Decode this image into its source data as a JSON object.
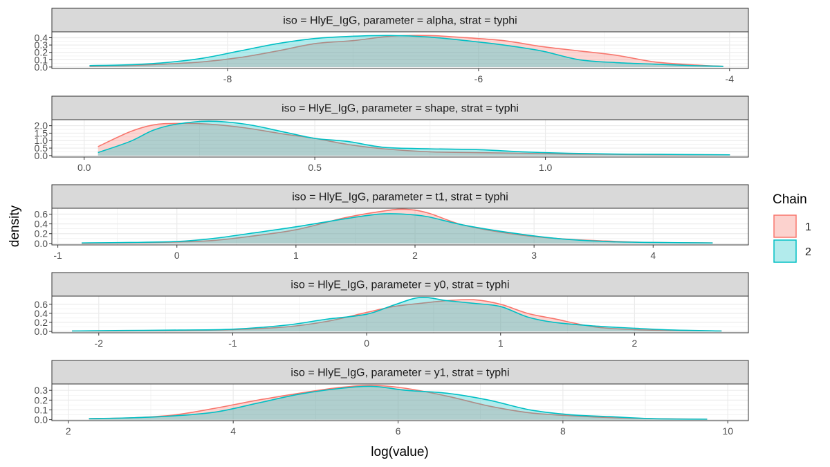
{
  "chart_data": {
    "type": "area",
    "xlabel": "log(value)",
    "ylabel": "density",
    "legend": {
      "title": "Chain",
      "position": "right",
      "entries": [
        {
          "label": "1",
          "color": "#F8766D",
          "fill": "#FCD2CE"
        },
        {
          "label": "2",
          "color": "#00BFC4",
          "fill": "#B2EBEC"
        }
      ]
    },
    "colors": {
      "chain1": "#F8766D",
      "chain2": "#00BFC4",
      "strip_bg": "#D9D9D9",
      "grid": "#EBEBEB"
    },
    "panels": [
      {
        "strip": "iso = HlyE_IgG, parameter = alpha, strat = typhi",
        "xlim": [
          -9.4,
          -3.85
        ],
        "ylim": [
          -0.02,
          0.48
        ],
        "xticks": [
          -8,
          -6,
          -4
        ],
        "xtick_labels": [
          "-8",
          "-6",
          "-4"
        ],
        "yticks": [
          0.0,
          0.1,
          0.2,
          0.3,
          0.4
        ],
        "ytick_labels": [
          "0.0",
          "0.1",
          "0.2",
          "0.3",
          "0.4"
        ],
        "series": [
          {
            "name": "1",
            "x": [
              -9.1,
              -8.8,
              -8.5,
              -8.2,
              -7.9,
              -7.6,
              -7.3,
              -7.0,
              -6.7,
              -6.4,
              -6.1,
              -5.8,
              -5.5,
              -5.2,
              -4.9,
              -4.6,
              -4.3,
              -4.05
            ],
            "y": [
              0.01,
              0.02,
              0.04,
              0.07,
              0.13,
              0.22,
              0.32,
              0.36,
              0.42,
              0.43,
              0.4,
              0.36,
              0.28,
              0.22,
              0.16,
              0.07,
              0.03,
              0.01
            ]
          },
          {
            "name": "2",
            "x": [
              -9.1,
              -8.8,
              -8.5,
              -8.2,
              -7.9,
              -7.6,
              -7.3,
              -7.0,
              -6.7,
              -6.4,
              -6.1,
              -5.8,
              -5.5,
              -5.2,
              -4.9,
              -4.6,
              -4.3,
              -4.05
            ],
            "y": [
              0.02,
              0.03,
              0.06,
              0.12,
              0.22,
              0.32,
              0.39,
              0.42,
              0.43,
              0.41,
              0.36,
              0.3,
              0.22,
              0.1,
              0.06,
              0.04,
              0.02,
              0.01
            ]
          }
        ]
      },
      {
        "strip": "iso = HlyE_IgG, parameter = shape, strat = typhi",
        "xlim": [
          -0.07,
          1.44
        ],
        "ylim": [
          -0.1,
          2.4
        ],
        "xticks": [
          0.0,
          0.5,
          1.0
        ],
        "xtick_labels": [
          "0.0",
          "0.5",
          "1.0"
        ],
        "yticks": [
          0.0,
          0.5,
          1.0,
          1.5,
          2.0
        ],
        "ytick_labels": [
          "0.0",
          "0.5",
          "1.0",
          "1.5",
          "2.0"
        ],
        "series": [
          {
            "name": "1",
            "x": [
              0.03,
              0.1,
              0.15,
              0.2,
              0.27,
              0.35,
              0.43,
              0.5,
              0.57,
              0.65,
              0.75,
              0.85,
              0.95,
              1.05,
              1.15,
              1.25,
              1.4
            ],
            "y": [
              0.6,
              1.6,
              2.05,
              2.15,
              2.1,
              1.85,
              1.45,
              1.15,
              0.75,
              0.45,
              0.25,
              0.2,
              0.15,
              0.1,
              0.08,
              0.06,
              0.05
            ]
          },
          {
            "name": "2",
            "x": [
              0.03,
              0.1,
              0.15,
              0.2,
              0.27,
              0.35,
              0.43,
              0.5,
              0.57,
              0.65,
              0.75,
              0.85,
              0.95,
              1.05,
              1.15,
              1.25,
              1.4
            ],
            "y": [
              0.2,
              0.95,
              1.7,
              2.1,
              2.3,
              2.1,
              1.6,
              1.15,
              0.95,
              0.55,
              0.45,
              0.4,
              0.25,
              0.15,
              0.1,
              0.08,
              0.05
            ]
          }
        ]
      },
      {
        "strip": "iso = HlyE_IgG, parameter = t1, strat = typhi",
        "xlim": [
          -1.05,
          4.8
        ],
        "ylim": [
          -0.03,
          0.72
        ],
        "xticks": [
          -1,
          0,
          1,
          2,
          3,
          4
        ],
        "xtick_labels": [
          "-1",
          "0",
          "1",
          "2",
          "3",
          "4"
        ],
        "yticks": [
          0.0,
          0.2,
          0.4,
          0.6
        ],
        "ytick_labels": [
          "0.0",
          "0.2",
          "0.4",
          "0.6"
        ],
        "series": [
          {
            "name": "1",
            "x": [
              -0.8,
              -0.4,
              0.0,
              0.3,
              0.6,
              1.0,
              1.4,
              1.7,
              1.9,
              2.1,
              2.4,
              2.8,
              3.2,
              3.6,
              4.0,
              4.5
            ],
            "y": [
              0.0,
              0.01,
              0.03,
              0.06,
              0.14,
              0.28,
              0.52,
              0.65,
              0.7,
              0.63,
              0.38,
              0.2,
              0.1,
              0.05,
              0.02,
              0.01
            ]
          },
          {
            "name": "2",
            "x": [
              -0.8,
              -0.4,
              0.0,
              0.3,
              0.6,
              1.0,
              1.4,
              1.7,
              1.9,
              2.1,
              2.4,
              2.8,
              3.2,
              3.6,
              4.0,
              4.5
            ],
            "y": [
              0.01,
              0.02,
              0.04,
              0.1,
              0.2,
              0.34,
              0.5,
              0.6,
              0.6,
              0.55,
              0.38,
              0.22,
              0.1,
              0.04,
              0.02,
              0.01
            ]
          }
        ]
      },
      {
        "strip": "iso = HlyE_IgG, parameter = y0, strat = typhi",
        "xlim": [
          -2.35,
          2.85
        ],
        "ylim": [
          -0.03,
          0.78
        ],
        "xticks": [
          -2,
          -1,
          0,
          1,
          2
        ],
        "xtick_labels": [
          "-2",
          "-1",
          "0",
          "1",
          "2"
        ],
        "yticks": [
          0.0,
          0.2,
          0.4,
          0.6
        ],
        "ytick_labels": [
          "0.0",
          "0.2",
          "0.4",
          "0.6"
        ],
        "series": [
          {
            "name": "1",
            "x": [
              -2.2,
              -1.8,
              -1.4,
              -1.0,
              -0.6,
              -0.3,
              0.0,
              0.2,
              0.4,
              0.6,
              0.8,
              1.0,
              1.2,
              1.4,
              1.7,
              2.0,
              2.3,
              2.65
            ],
            "y": [
              0.01,
              0.01,
              0.02,
              0.04,
              0.1,
              0.22,
              0.42,
              0.55,
              0.62,
              0.68,
              0.7,
              0.6,
              0.4,
              0.28,
              0.1,
              0.04,
              0.02,
              0.01
            ]
          },
          {
            "name": "2",
            "x": [
              -2.2,
              -1.8,
              -1.4,
              -1.0,
              -0.6,
              -0.3,
              0.0,
              0.2,
              0.4,
              0.6,
              0.8,
              1.0,
              1.2,
              1.4,
              1.7,
              2.0,
              2.3,
              2.65
            ],
            "y": [
              0.01,
              0.02,
              0.03,
              0.05,
              0.14,
              0.27,
              0.38,
              0.58,
              0.75,
              0.68,
              0.62,
              0.55,
              0.32,
              0.2,
              0.12,
              0.07,
              0.03,
              0.01
            ]
          }
        ]
      },
      {
        "strip": "iso = HlyE_IgG, parameter = y1, strat = typhi",
        "xlim": [
          1.8,
          10.25
        ],
        "ylim": [
          -0.01,
          0.365
        ],
        "xticks": [
          2,
          4,
          6,
          8,
          10
        ],
        "xtick_labels": [
          "2",
          "4",
          "6",
          "8",
          "10"
        ],
        "yticks": [
          0.0,
          0.1,
          0.2,
          0.3
        ],
        "ytick_labels": [
          "0.0",
          "0.1",
          "0.2",
          "0.3"
        ],
        "series": [
          {
            "name": "1",
            "x": [
              2.25,
              2.8,
              3.3,
              3.8,
              4.3,
              4.8,
              5.3,
              5.7,
              6.1,
              6.6,
              7.1,
              7.6,
              8.1,
              8.6,
              9.1,
              9.75
            ],
            "y": [
              0.01,
              0.02,
              0.05,
              0.12,
              0.2,
              0.27,
              0.33,
              0.35,
              0.32,
              0.24,
              0.14,
              0.07,
              0.04,
              0.02,
              0.01,
              0.005
            ]
          },
          {
            "name": "2",
            "x": [
              2.25,
              2.8,
              3.3,
              3.8,
              4.3,
              4.8,
              5.3,
              5.7,
              6.1,
              6.6,
              7.1,
              7.6,
              8.1,
              8.6,
              9.1,
              9.75
            ],
            "y": [
              0.01,
              0.02,
              0.04,
              0.08,
              0.17,
              0.26,
              0.32,
              0.34,
              0.3,
              0.27,
              0.2,
              0.1,
              0.05,
              0.03,
              0.01,
              0.005
            ]
          }
        ]
      }
    ]
  }
}
